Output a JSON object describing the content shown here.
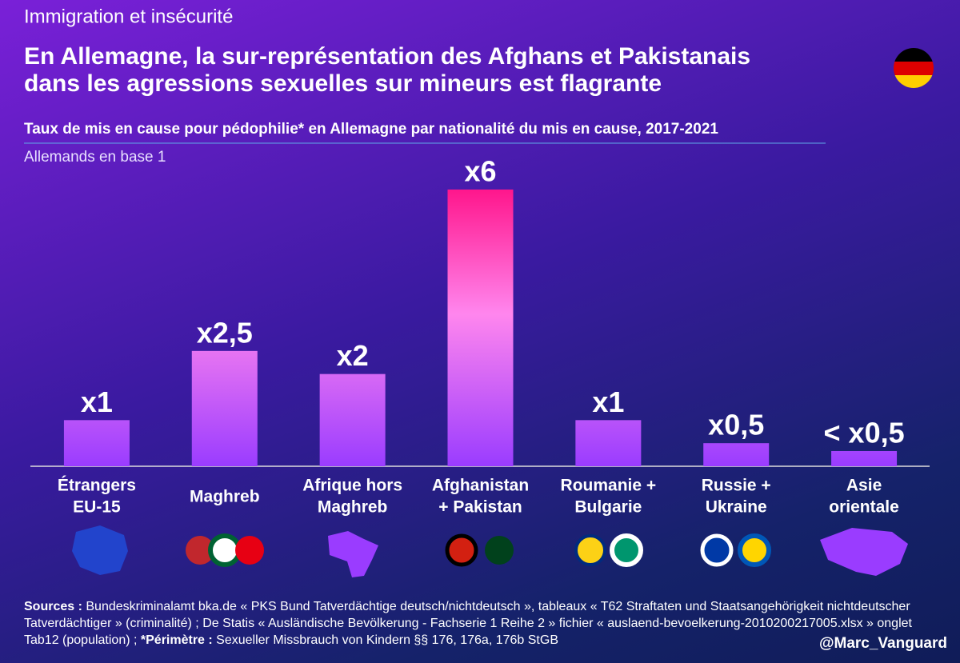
{
  "chart_data": {
    "type": "bar",
    "kicker": "Immigration et insécurité",
    "title": [
      "En Allemagne, la sur-représentation des Afghans et Pakistanais",
      "dans les agressions sexuelles sur mineurs est flagrante"
    ],
    "subtitle": "Taux de mis en cause pour pédophilie* en Allemagne par nationalité du mis en cause, 2017-2021",
    "note": "Allemands en base 1",
    "categories": [
      [
        "Étrangers",
        "EU-15"
      ],
      [
        "Maghreb"
      ],
      [
        "Afrique hors",
        "Maghreb"
      ],
      [
        "Afghanistan",
        "+ Pakistan"
      ],
      [
        "Roumanie +",
        "Bulgarie"
      ],
      [
        "Russie +",
        "Ukraine"
      ],
      [
        "Asie",
        "orientale"
      ]
    ],
    "values": [
      1,
      2.5,
      2,
      6,
      1,
      0.5,
      0.33
    ],
    "value_labels": [
      "x1",
      "x2,5",
      "x2",
      "x6",
      "x1",
      "x0,5",
      "< x0,5"
    ],
    "ylim": [
      0,
      6
    ],
    "sources": {
      "label": "Sources :",
      "text": "Bundeskriminalamt bka.de « PKS Bund Tatverdächtige deutsch/nichtdeutsch », tableaux « T62 Straftaten und Staatsangehörigkeit nichtdeutscher Tatverdächtiger » (criminalité) ; De Statis « Ausländische Bevölkerung - Fachserie 1 Reihe 2 » fichier « auslaend-bevoelkerung-2010200217005.xlsx » onglet Tab12 (population) ;",
      "scope_label": "*Périmètre :",
      "scope_text": "Sexueller Missbrauch von Kindern §§ 176, 176a, 176b StGB"
    },
    "handle": "@Marc_Vanguard"
  }
}
